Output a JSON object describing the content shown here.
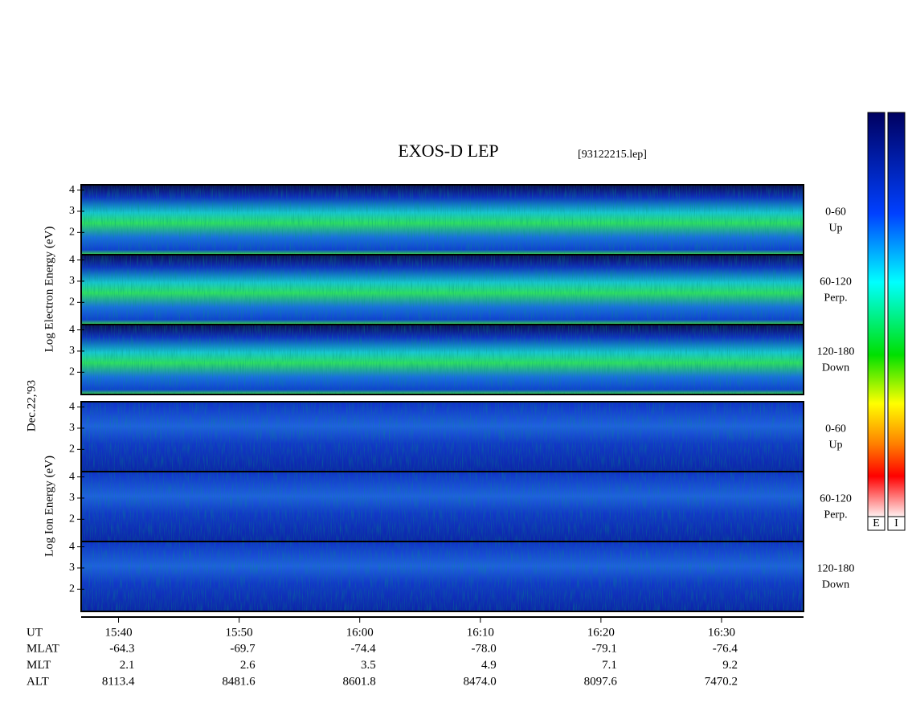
{
  "header": {
    "title": "EXOS-D LEP",
    "file": "[93122215.lep]"
  },
  "axes": {
    "electron_label": "Log Electron Energy (eV)",
    "ion_label": "Log Ion Energy (eV)",
    "date": "Dec.22,'93"
  },
  "panels": [
    {
      "species": "electron",
      "range": "0-60",
      "direction": "Up"
    },
    {
      "species": "electron",
      "range": "60-120",
      "direction": "Perp."
    },
    {
      "species": "electron",
      "range": "120-180",
      "direction": "Down"
    },
    {
      "species": "ion",
      "range": "0-60",
      "direction": "Up"
    },
    {
      "species": "ion",
      "range": "60-120",
      "direction": "Perp."
    },
    {
      "species": "ion",
      "range": "120-180",
      "direction": "Down"
    }
  ],
  "energy_ylim": [
    0.95,
    4.25
  ],
  "energy_ticks": [
    2,
    3,
    4
  ],
  "time_axis": {
    "label": "UT",
    "xlim": [
      936.9,
      996.8
    ],
    "ticks": [
      {
        "value": 940,
        "label": "15:40"
      },
      {
        "value": 950,
        "label": "15:50"
      },
      {
        "value": 960,
        "label": "16:00"
      },
      {
        "value": 970,
        "label": "16:10"
      },
      {
        "value": 980,
        "label": "16:20"
      },
      {
        "value": 990,
        "label": "16:30"
      }
    ]
  },
  "ephemeris": {
    "rows": [
      {
        "label": "MLAT",
        "values": [
          "-64.3",
          "-69.7",
          "-74.4",
          "-78.0",
          "-79.1",
          "-76.4"
        ]
      },
      {
        "label": "MLT",
        "values": [
          "2.1",
          "2.6",
          "3.5",
          "4.9",
          "7.1",
          "9.2"
        ]
      },
      {
        "label": "ALT",
        "values": [
          "8113.4",
          "8481.6",
          "8601.8",
          "8474.0",
          "8097.6",
          "7470.2"
        ]
      }
    ]
  },
  "colorbars": [
    "E",
    "I"
  ]
}
